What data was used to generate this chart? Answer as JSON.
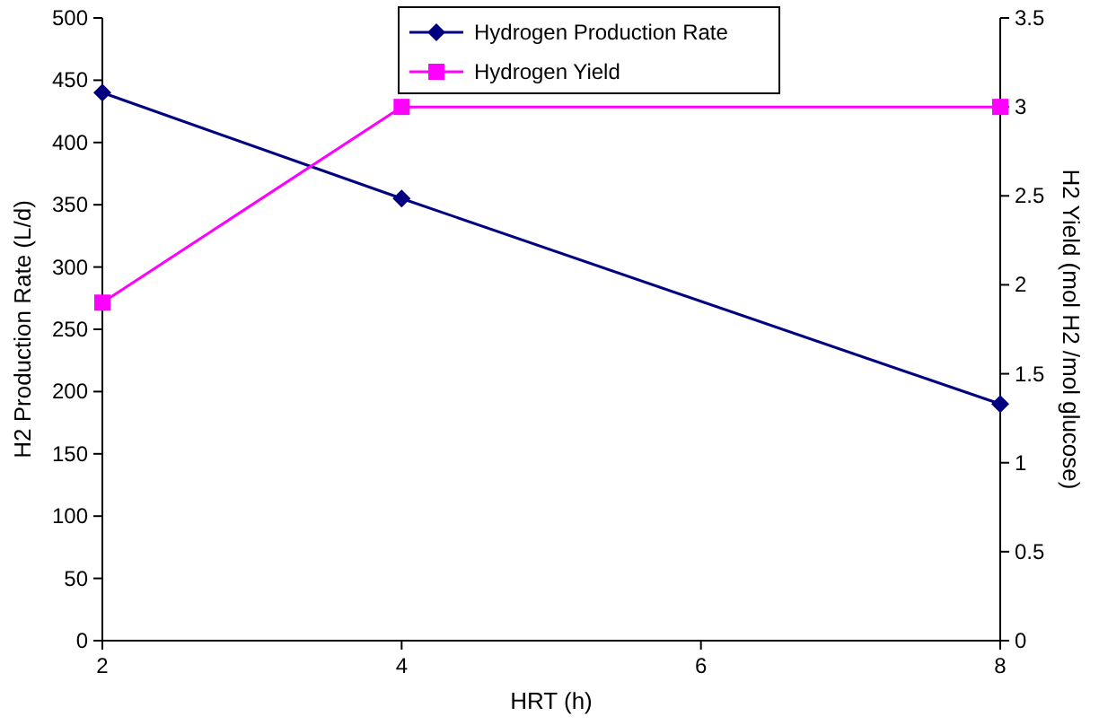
{
  "chart_data": {
    "type": "line",
    "xlabel": "HRT (h)",
    "ylabel": "H2 Production Rate (L/d)",
    "y2label": "H2 Yield (mol H2 /mol glucose)",
    "x": [
      2,
      4,
      8
    ],
    "series": [
      {
        "name": "Hydrogen Production Rate",
        "color": "#000080",
        "values": [
          440,
          355,
          190
        ],
        "marker": "diamond"
      },
      {
        "name": "Hydrogen Yield",
        "color": "#ff00ff",
        "values": [
          1.9,
          3.0,
          3.0
        ],
        "marker": "square",
        "axis": "y2"
      }
    ],
    "xlim": [
      2,
      8
    ],
    "xticks": [
      2,
      4,
      6,
      8
    ],
    "ylim": [
      0,
      500
    ],
    "yticks": [
      0,
      50,
      100,
      150,
      200,
      250,
      300,
      350,
      400,
      450,
      500
    ],
    "y2lim": [
      0,
      3.5
    ],
    "y2ticks": [
      0,
      0.5,
      1,
      1.5,
      2,
      2.5,
      3,
      3.5
    ],
    "legend": "top",
    "grid": false,
    "line_style": "solid"
  }
}
